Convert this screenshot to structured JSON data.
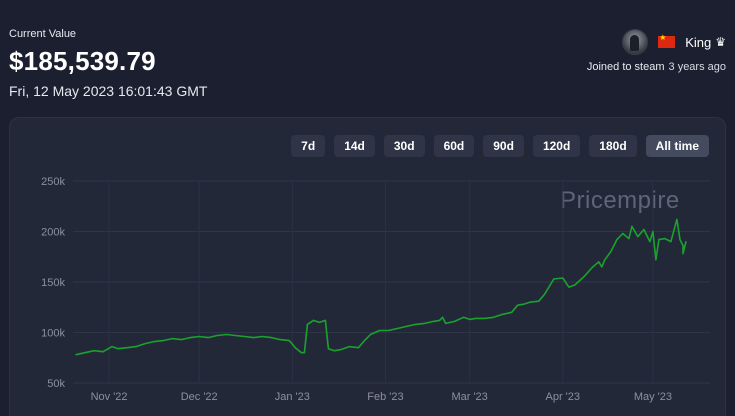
{
  "header": {
    "current_value_label": "Current Value",
    "current_value": "$185,539.79",
    "timestamp": "Fri, 12 May 2023 16:01:43 GMT"
  },
  "profile": {
    "avatar_icon": "avatar-icon",
    "flag_icon": "china-flag-icon",
    "username": "King",
    "badge_icon": "crown-icon",
    "badge_glyph": "♛",
    "joined_label": "Joined to steam",
    "joined_ago": "3 years ago"
  },
  "range_buttons": [
    {
      "label": "7d",
      "active": false
    },
    {
      "label": "14d",
      "active": false
    },
    {
      "label": "30d",
      "active": false
    },
    {
      "label": "60d",
      "active": false
    },
    {
      "label": "90d",
      "active": false
    },
    {
      "label": "120d",
      "active": false
    },
    {
      "label": "180d",
      "active": false
    },
    {
      "label": "All time",
      "active": true
    }
  ],
  "watermark": "Pricempire",
  "chart_data": {
    "type": "line",
    "title": "",
    "xlabel": "",
    "ylabel": "",
    "ylim": [
      50000,
      250000
    ],
    "yticks": [
      {
        "value": 250000,
        "label": "250k"
      },
      {
        "value": 200000,
        "label": "200k"
      },
      {
        "value": 150000,
        "label": "150k"
      },
      {
        "value": 100000,
        "label": "100k"
      },
      {
        "value": 50000,
        "label": "50k"
      }
    ],
    "xlim": [
      "2022-10-20",
      "2023-05-20"
    ],
    "xticks": [
      {
        "date": "2022-11-01",
        "label": "Nov '22"
      },
      {
        "date": "2022-12-01",
        "label": "Dec '22"
      },
      {
        "date": "2023-01-01",
        "label": "Jan '23"
      },
      {
        "date": "2023-02-01",
        "label": "Feb '23"
      },
      {
        "date": "2023-03-01",
        "label": "Mar '23"
      },
      {
        "date": "2023-04-01",
        "label": "Apr '23"
      },
      {
        "date": "2023-05-01",
        "label": "May '23"
      }
    ],
    "grid": true,
    "line_color": "#1aa32c",
    "series": [
      {
        "points": [
          [
            "2022-10-21",
            78000
          ],
          [
            "2022-10-24",
            80000
          ],
          [
            "2022-10-27",
            82000
          ],
          [
            "2022-10-30",
            81000
          ],
          [
            "2022-11-02",
            86000
          ],
          [
            "2022-11-04",
            84000
          ],
          [
            "2022-11-07",
            85000
          ],
          [
            "2022-11-10",
            86000
          ],
          [
            "2022-11-13",
            89000
          ],
          [
            "2022-11-16",
            91000
          ],
          [
            "2022-11-19",
            92000
          ],
          [
            "2022-11-22",
            94000
          ],
          [
            "2022-11-25",
            93000
          ],
          [
            "2022-11-28",
            95000
          ],
          [
            "2022-12-01",
            96000
          ],
          [
            "2022-12-04",
            95000
          ],
          [
            "2022-12-07",
            97000
          ],
          [
            "2022-12-10",
            98000
          ],
          [
            "2022-12-13",
            97000
          ],
          [
            "2022-12-16",
            96000
          ],
          [
            "2022-12-19",
            95000
          ],
          [
            "2022-12-22",
            96000
          ],
          [
            "2022-12-25",
            95000
          ],
          [
            "2022-12-28",
            93000
          ],
          [
            "2022-12-31",
            92000
          ],
          [
            "2023-01-02",
            85000
          ],
          [
            "2023-01-04",
            80000
          ],
          [
            "2023-01-05",
            80000
          ],
          [
            "2023-01-06",
            108000
          ],
          [
            "2023-01-08",
            112000
          ],
          [
            "2023-01-10",
            110000
          ],
          [
            "2023-01-12",
            112000
          ],
          [
            "2023-01-13",
            84000
          ],
          [
            "2023-01-15",
            82000
          ],
          [
            "2023-01-17",
            83000
          ],
          [
            "2023-01-20",
            86000
          ],
          [
            "2023-01-23",
            85000
          ],
          [
            "2023-01-25",
            92000
          ],
          [
            "2023-01-27",
            98000
          ],
          [
            "2023-01-30",
            102000
          ],
          [
            "2023-02-02",
            102000
          ],
          [
            "2023-02-05",
            104000
          ],
          [
            "2023-02-08",
            106000
          ],
          [
            "2023-02-11",
            108000
          ],
          [
            "2023-02-14",
            109000
          ],
          [
            "2023-02-17",
            111000
          ],
          [
            "2023-02-19",
            112000
          ],
          [
            "2023-02-20",
            115000
          ],
          [
            "2023-02-21",
            109000
          ],
          [
            "2023-02-24",
            111000
          ],
          [
            "2023-02-27",
            115000
          ],
          [
            "2023-03-01",
            113000
          ],
          [
            "2023-03-03",
            114000
          ],
          [
            "2023-03-06",
            114000
          ],
          [
            "2023-03-09",
            115000
          ],
          [
            "2023-03-12",
            118000
          ],
          [
            "2023-03-15",
            120000
          ],
          [
            "2023-03-17",
            127000
          ],
          [
            "2023-03-19",
            128000
          ],
          [
            "2023-03-21",
            130000
          ],
          [
            "2023-03-24",
            131000
          ],
          [
            "2023-03-26",
            138000
          ],
          [
            "2023-03-29",
            153000
          ],
          [
            "2023-04-01",
            154000
          ],
          [
            "2023-04-03",
            145000
          ],
          [
            "2023-04-05",
            147000
          ],
          [
            "2023-04-08",
            155000
          ],
          [
            "2023-04-11",
            165000
          ],
          [
            "2023-04-13",
            170000
          ],
          [
            "2023-04-14",
            165000
          ],
          [
            "2023-04-15",
            172000
          ],
          [
            "2023-04-17",
            180000
          ],
          [
            "2023-04-19",
            192000
          ],
          [
            "2023-04-21",
            198000
          ],
          [
            "2023-04-23",
            193000
          ],
          [
            "2023-04-24",
            205000
          ],
          [
            "2023-04-26",
            195000
          ],
          [
            "2023-04-28",
            202000
          ],
          [
            "2023-04-30",
            190000
          ],
          [
            "2023-05-01",
            200000
          ],
          [
            "2023-05-02",
            172000
          ],
          [
            "2023-05-03",
            192000
          ],
          [
            "2023-05-05",
            193000
          ],
          [
            "2023-05-07",
            190000
          ],
          [
            "2023-05-09",
            212000
          ],
          [
            "2023-05-10",
            192000
          ],
          [
            "2023-05-11",
            186000
          ],
          [
            "2023-05-11",
            178000
          ],
          [
            "2023-05-12",
            190000
          ]
        ]
      }
    ]
  }
}
